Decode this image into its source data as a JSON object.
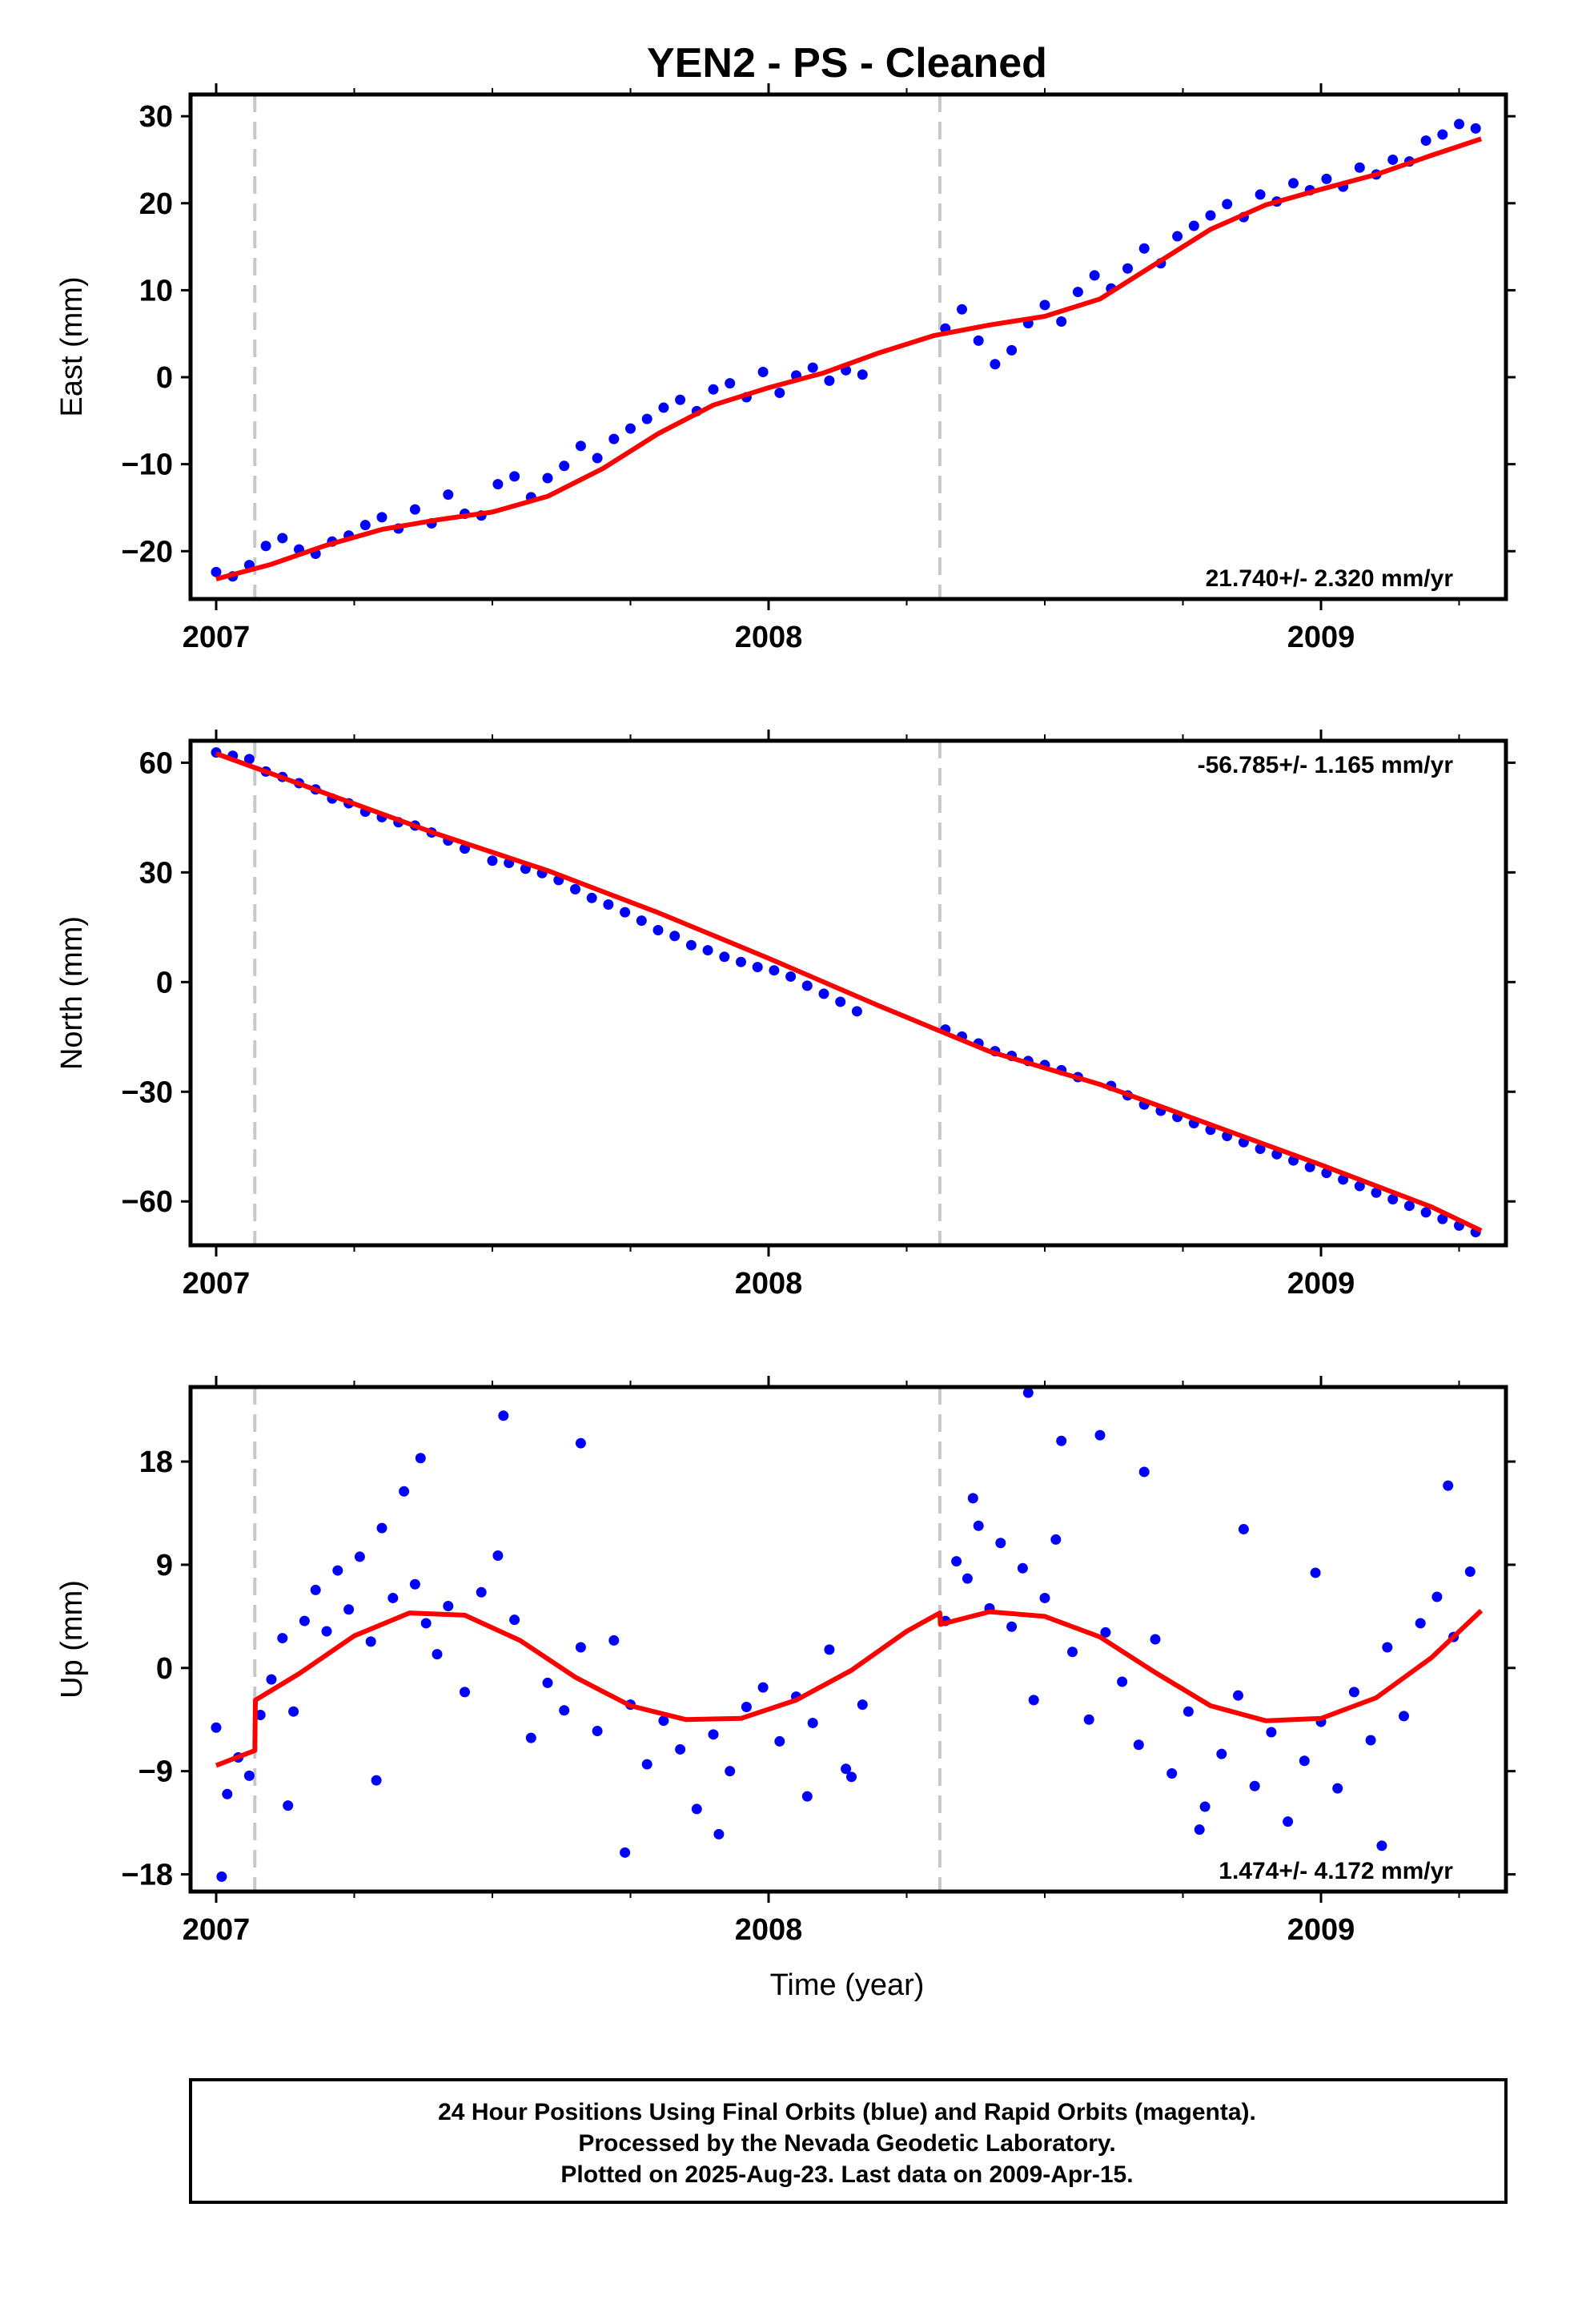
{
  "title": "YEN2  - PS - Cleaned",
  "footer": {
    "line1": "24 Hour Positions Using Final Orbits (blue) and Rapid Orbits (magenta).",
    "line2": "Processed by the Nevada Geodetic Laboratory.",
    "line3": "Plotted on 2025-Aug-23. Last data on 2009-Apr-15."
  },
  "colors": {
    "points": "#0000ff",
    "model": "#ff0000",
    "breaks": "#c8c8c8",
    "frame": "#000000"
  },
  "chart_data": [
    {
      "type": "scatter",
      "component": "east",
      "ylabel": "East (mm)",
      "xlabel": "",
      "xlim": [
        2007.0,
        2009.32
      ],
      "ylim": [
        -25.5,
        32.5
      ],
      "yticks": [
        -20,
        -10,
        0,
        10,
        20,
        30
      ],
      "xticks": [
        2007,
        2008,
        2009
      ],
      "xtick_labels": [
        "2007",
        "2008",
        "2009"
      ],
      "rate_text": "21.740+/- 2.320 mm/yr",
      "rate_position": "bottom-right",
      "breaks": [
        2007.07,
        2008.31
      ],
      "grid": false,
      "model_curve": {
        "x": [
          2007.0,
          2007.1,
          2007.2,
          2007.3,
          2007.4,
          2007.5,
          2007.6,
          2007.7,
          2007.8,
          2007.9,
          2008.0,
          2008.1,
          2008.2,
          2008.3,
          2008.4,
          2008.5,
          2008.6,
          2008.7,
          2008.8,
          2008.9,
          2009.0,
          2009.1,
          2009.2,
          2009.29
        ],
        "y": [
          -23.2,
          -21.5,
          -19.3,
          -17.5,
          -16.4,
          -15.5,
          -13.7,
          -10.5,
          -6.5,
          -3.2,
          -1.2,
          0.5,
          2.8,
          4.8,
          6.0,
          7.0,
          9.0,
          13.0,
          17.0,
          19.8,
          21.6,
          23.3,
          25.5,
          27.4
        ]
      },
      "points": {
        "x": [
          2007.0,
          2007.03,
          2007.06,
          2007.09,
          2007.12,
          2007.15,
          2007.18,
          2007.21,
          2007.24,
          2007.27,
          2007.3,
          2007.33,
          2007.36,
          2007.39,
          2007.42,
          2007.45,
          2007.48,
          2007.51,
          2007.54,
          2007.57,
          2007.6,
          2007.63,
          2007.66,
          2007.69,
          2007.72,
          2007.75,
          2007.78,
          2007.81,
          2007.84,
          2007.87,
          2007.9,
          2007.93,
          2007.96,
          2007.99,
          2008.02,
          2008.05,
          2008.08,
          2008.11,
          2008.14,
          2008.17,
          2008.32,
          2008.35,
          2008.38,
          2008.41,
          2008.44,
          2008.47,
          2008.5,
          2008.53,
          2008.56,
          2008.59,
          2008.62,
          2008.65,
          2008.68,
          2008.71,
          2008.74,
          2008.77,
          2008.8,
          2008.83,
          2008.86,
          2008.89,
          2008.92,
          2008.95,
          2008.98,
          2009.01,
          2009.04,
          2009.07,
          2009.1,
          2009.13,
          2009.16,
          2009.19,
          2009.22,
          2009.25,
          2009.28
        ],
        "y": [
          -22.4,
          -22.9,
          -21.6,
          -19.4,
          -18.5,
          -19.8,
          -20.3,
          -18.9,
          -18.2,
          -17.0,
          -16.1,
          -17.4,
          -15.2,
          -16.8,
          -13.5,
          -15.7,
          -15.9,
          -12.3,
          -11.4,
          -13.8,
          -11.6,
          -10.2,
          -7.9,
          -9.3,
          -7.1,
          -5.9,
          -4.8,
          -3.5,
          -2.6,
          -3.9,
          -1.4,
          -0.7,
          -2.3,
          0.6,
          -1.8,
          0.2,
          1.1,
          -0.4,
          0.8,
          0.3,
          5.6,
          7.8,
          4.2,
          1.5,
          3.1,
          6.2,
          8.3,
          6.4,
          9.8,
          11.7,
          10.2,
          12.5,
          14.8,
          13.1,
          16.2,
          17.4,
          18.6,
          19.9,
          18.4,
          21.0,
          20.2,
          22.3,
          21.5,
          22.8,
          21.9,
          24.1,
          23.3,
          25.0,
          24.8,
          27.2,
          27.9,
          29.1,
          28.6
        ]
      }
    },
    {
      "type": "scatter",
      "component": "north",
      "ylabel": "North (mm)",
      "xlabel": "",
      "xlim": [
        2007.0,
        2009.32
      ],
      "ylim": [
        -72,
        66
      ],
      "yticks": [
        -60,
        -30,
        0,
        30,
        60
      ],
      "xticks": [
        2007,
        2008,
        2009
      ],
      "xtick_labels": [
        "2007",
        "2008",
        "2009"
      ],
      "rate_text": "-56.785+/- 1.165 mm/yr",
      "rate_position": "top-right",
      "breaks": [
        2007.07,
        2008.31
      ],
      "grid": false,
      "model_curve": {
        "x": [
          2007.0,
          2007.2,
          2007.4,
          2007.6,
          2007.8,
          2008.0,
          2008.2,
          2008.4,
          2008.6,
          2008.8,
          2009.0,
          2009.2,
          2009.29
        ],
        "y": [
          62.5,
          51.5,
          40.5,
          30.5,
          19.0,
          6.5,
          -6.5,
          -19.0,
          -28.0,
          -39.0,
          -50.0,
          -61.5,
          -68.0
        ]
      },
      "points": {
        "x": [
          2007.0,
          2007.03,
          2007.06,
          2007.09,
          2007.12,
          2007.15,
          2007.18,
          2007.21,
          2007.24,
          2007.27,
          2007.3,
          2007.33,
          2007.36,
          2007.39,
          2007.42,
          2007.45,
          2007.5,
          2007.53,
          2007.56,
          2007.59,
          2007.62,
          2007.65,
          2007.68,
          2007.71,
          2007.74,
          2007.77,
          2007.8,
          2007.83,
          2007.86,
          2007.89,
          2007.92,
          2007.95,
          2007.98,
          2008.01,
          2008.04,
          2008.07,
          2008.1,
          2008.13,
          2008.16,
          2008.32,
          2008.35,
          2008.38,
          2008.41,
          2008.44,
          2008.47,
          2008.5,
          2008.53,
          2008.56,
          2008.62,
          2008.65,
          2008.68,
          2008.71,
          2008.74,
          2008.77,
          2008.8,
          2008.83,
          2008.86,
          2008.89,
          2008.92,
          2008.95,
          2008.98,
          2009.01,
          2009.04,
          2009.07,
          2009.1,
          2009.13,
          2009.16,
          2009.19,
          2009.22,
          2009.25,
          2009.28
        ],
        "y": [
          62.8,
          61.9,
          61.0,
          57.6,
          56.1,
          54.4,
          52.7,
          50.2,
          48.9,
          46.6,
          45.1,
          43.7,
          42.8,
          40.9,
          38.7,
          36.5,
          33.2,
          32.6,
          31.0,
          29.8,
          27.9,
          25.4,
          23.0,
          21.2,
          19.1,
          16.8,
          14.2,
          12.6,
          10.1,
          8.7,
          6.9,
          5.5,
          4.1,
          3.2,
          1.5,
          -1.0,
          -3.2,
          -5.4,
          -8.0,
          -13.0,
          -14.9,
          -16.8,
          -18.9,
          -20.2,
          -21.6,
          -22.7,
          -24.1,
          -26.0,
          -28.4,
          -31.0,
          -33.5,
          -35.2,
          -36.9,
          -38.6,
          -40.4,
          -42.1,
          -43.8,
          -45.6,
          -47.1,
          -48.8,
          -50.6,
          -52.2,
          -54.0,
          -55.8,
          -57.6,
          -59.4,
          -61.2,
          -63.0,
          -64.8,
          -66.6,
          -68.4
        ]
      }
    },
    {
      "type": "scatter",
      "component": "up",
      "ylabel": "Up (mm)",
      "xlabel": "Time (year)",
      "xlim": [
        2007.0,
        2009.32
      ],
      "ylim": [
        -19.5,
        24.5
      ],
      "yticks": [
        -18,
        -9,
        0,
        9,
        18
      ],
      "xticks": [
        2007,
        2008,
        2009
      ],
      "xtick_labels": [
        "2007",
        "2008",
        "2009"
      ],
      "rate_text": "1.474+/- 4.172 mm/yr",
      "rate_position": "bottom-right",
      "breaks": [
        2007.07,
        2008.31
      ],
      "grid": false,
      "model_curve": {
        "x": [
          2007.0,
          2007.07,
          2007.071,
          2007.15,
          2007.25,
          2007.35,
          2007.45,
          2007.55,
          2007.65,
          2007.75,
          2007.85,
          2007.95,
          2008.05,
          2008.15,
          2008.25,
          2008.31,
          2008.311,
          2008.4,
          2008.5,
          2008.6,
          2008.7,
          2008.8,
          2008.9,
          2009.0,
          2009.1,
          2009.2,
          2009.29
        ],
        "y": [
          -8.5,
          -7.2,
          -2.8,
          -0.5,
          2.8,
          4.8,
          4.6,
          2.4,
          -0.8,
          -3.3,
          -4.5,
          -4.4,
          -2.8,
          -0.2,
          3.2,
          4.8,
          3.8,
          4.9,
          4.5,
          2.7,
          -0.4,
          -3.3,
          -4.6,
          -4.4,
          -2.6,
          0.9,
          5.0
        ]
      },
      "points": {
        "x": [
          2007.0,
          2007.02,
          2007.04,
          2007.06,
          2007.08,
          2007.1,
          2007.12,
          2007.14,
          2007.16,
          2007.18,
          2007.2,
          2007.22,
          2007.24,
          2007.26,
          2007.28,
          2007.3,
          2007.32,
          2007.34,
          2007.36,
          2007.38,
          2007.4,
          2007.42,
          2007.45,
          2007.48,
          2007.51,
          2007.54,
          2007.57,
          2007.6,
          2007.63,
          2007.66,
          2007.69,
          2007.72,
          2007.75,
          2007.78,
          2007.81,
          2007.84,
          2007.87,
          2007.9,
          2007.93,
          2007.96,
          2007.99,
          2008.02,
          2008.05,
          2008.08,
          2008.11,
          2008.14,
          2008.17,
          2008.32,
          2008.34,
          2008.36,
          2008.38,
          2008.4,
          2008.42,
          2008.44,
          2008.46,
          2008.48,
          2008.5,
          2008.52,
          2008.55,
          2008.58,
          2008.61,
          2008.64,
          2008.67,
          2008.7,
          2008.73,
          2008.76,
          2008.79,
          2008.82,
          2008.85,
          2008.88,
          2008.91,
          2008.94,
          2008.97,
          2009.0,
          2009.03,
          2009.06,
          2009.09,
          2009.12,
          2009.15,
          2009.18,
          2009.21,
          2009.24,
          2009.27,
          2007.01,
          2007.13,
          2007.29,
          2007.37,
          2007.52,
          2007.66,
          2007.74,
          2007.91,
          2008.07,
          2008.15,
          2008.37,
          2008.47,
          2008.53,
          2008.6,
          2008.68,
          2008.78,
          2008.86,
          2008.99,
          2009.11,
          2009.23
        ],
        "y": [
          -5.2,
          -11.0,
          -7.8,
          -9.4,
          -4.1,
          -1.0,
          2.6,
          -3.8,
          4.1,
          6.8,
          3.2,
          8.5,
          5.1,
          9.7,
          2.3,
          12.2,
          6.1,
          15.4,
          7.3,
          3.9,
          1.2,
          5.4,
          -2.1,
          6.6,
          9.8,
          4.2,
          -6.1,
          -1.3,
          -3.7,
          1.8,
          -5.5,
          2.4,
          -3.2,
          -8.4,
          -4.6,
          -7.1,
          -12.3,
          -5.8,
          -9.0,
          -3.4,
          -1.7,
          -6.4,
          -2.5,
          -4.8,
          1.6,
          -8.8,
          -3.2,
          4.1,
          9.3,
          7.8,
          12.4,
          5.2,
          10.9,
          3.6,
          8.7,
          -2.8,
          6.1,
          11.2,
          1.4,
          -4.5,
          3.1,
          -1.2,
          -6.7,
          2.5,
          -9.2,
          -3.8,
          -12.1,
          -7.5,
          -2.4,
          -10.3,
          -5.6,
          -13.4,
          -8.1,
          -4.7,
          -10.5,
          -2.1,
          -6.3,
          1.8,
          -4.2,
          3.9,
          6.2,
          2.7,
          8.4,
          -18.2,
          -12.0,
          -9.8,
          18.3,
          22.0,
          19.6,
          -16.1,
          -14.5,
          -11.2,
          -9.5,
          14.8,
          24.0,
          19.8,
          20.3,
          17.1,
          -14.1,
          12.1,
          8.3,
          -15.5,
          15.9
        ]
      }
    }
  ]
}
